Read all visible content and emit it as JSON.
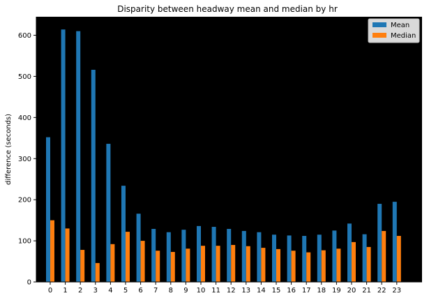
{
  "chart_data": {
    "type": "bar",
    "title": "Disparity between headway mean and median by hr",
    "xlabel": "",
    "ylabel": "difference (seconds)",
    "categories": [
      "0",
      "1",
      "2",
      "3",
      "4",
      "5",
      "6",
      "7",
      "8",
      "9",
      "10",
      "11",
      "12",
      "13",
      "14",
      "15",
      "16",
      "17",
      "18",
      "19",
      "20",
      "21",
      "22",
      "23"
    ],
    "ylim": [
      0,
      645
    ],
    "yticks": [
      0,
      100,
      200,
      300,
      400,
      500,
      600
    ],
    "grid": false,
    "legend_position": "top-right",
    "series": [
      {
        "name": "Mean",
        "color": "#1f77b4",
        "values": [
          352,
          614,
          610,
          516,
          336,
          234,
          166,
          129,
          121,
          127,
          136,
          134,
          129,
          124,
          121,
          115,
          113,
          112,
          115,
          125,
          142,
          116,
          190,
          195
        ]
      },
      {
        "name": "Median",
        "color": "#ff7f0e",
        "values": [
          150,
          130,
          78,
          46,
          92,
          122,
          100,
          76,
          73,
          81,
          88,
          88,
          90,
          87,
          83,
          80,
          76,
          72,
          77,
          81,
          97,
          85,
          124,
          112
        ]
      }
    ],
    "plot_background": "#000000"
  }
}
